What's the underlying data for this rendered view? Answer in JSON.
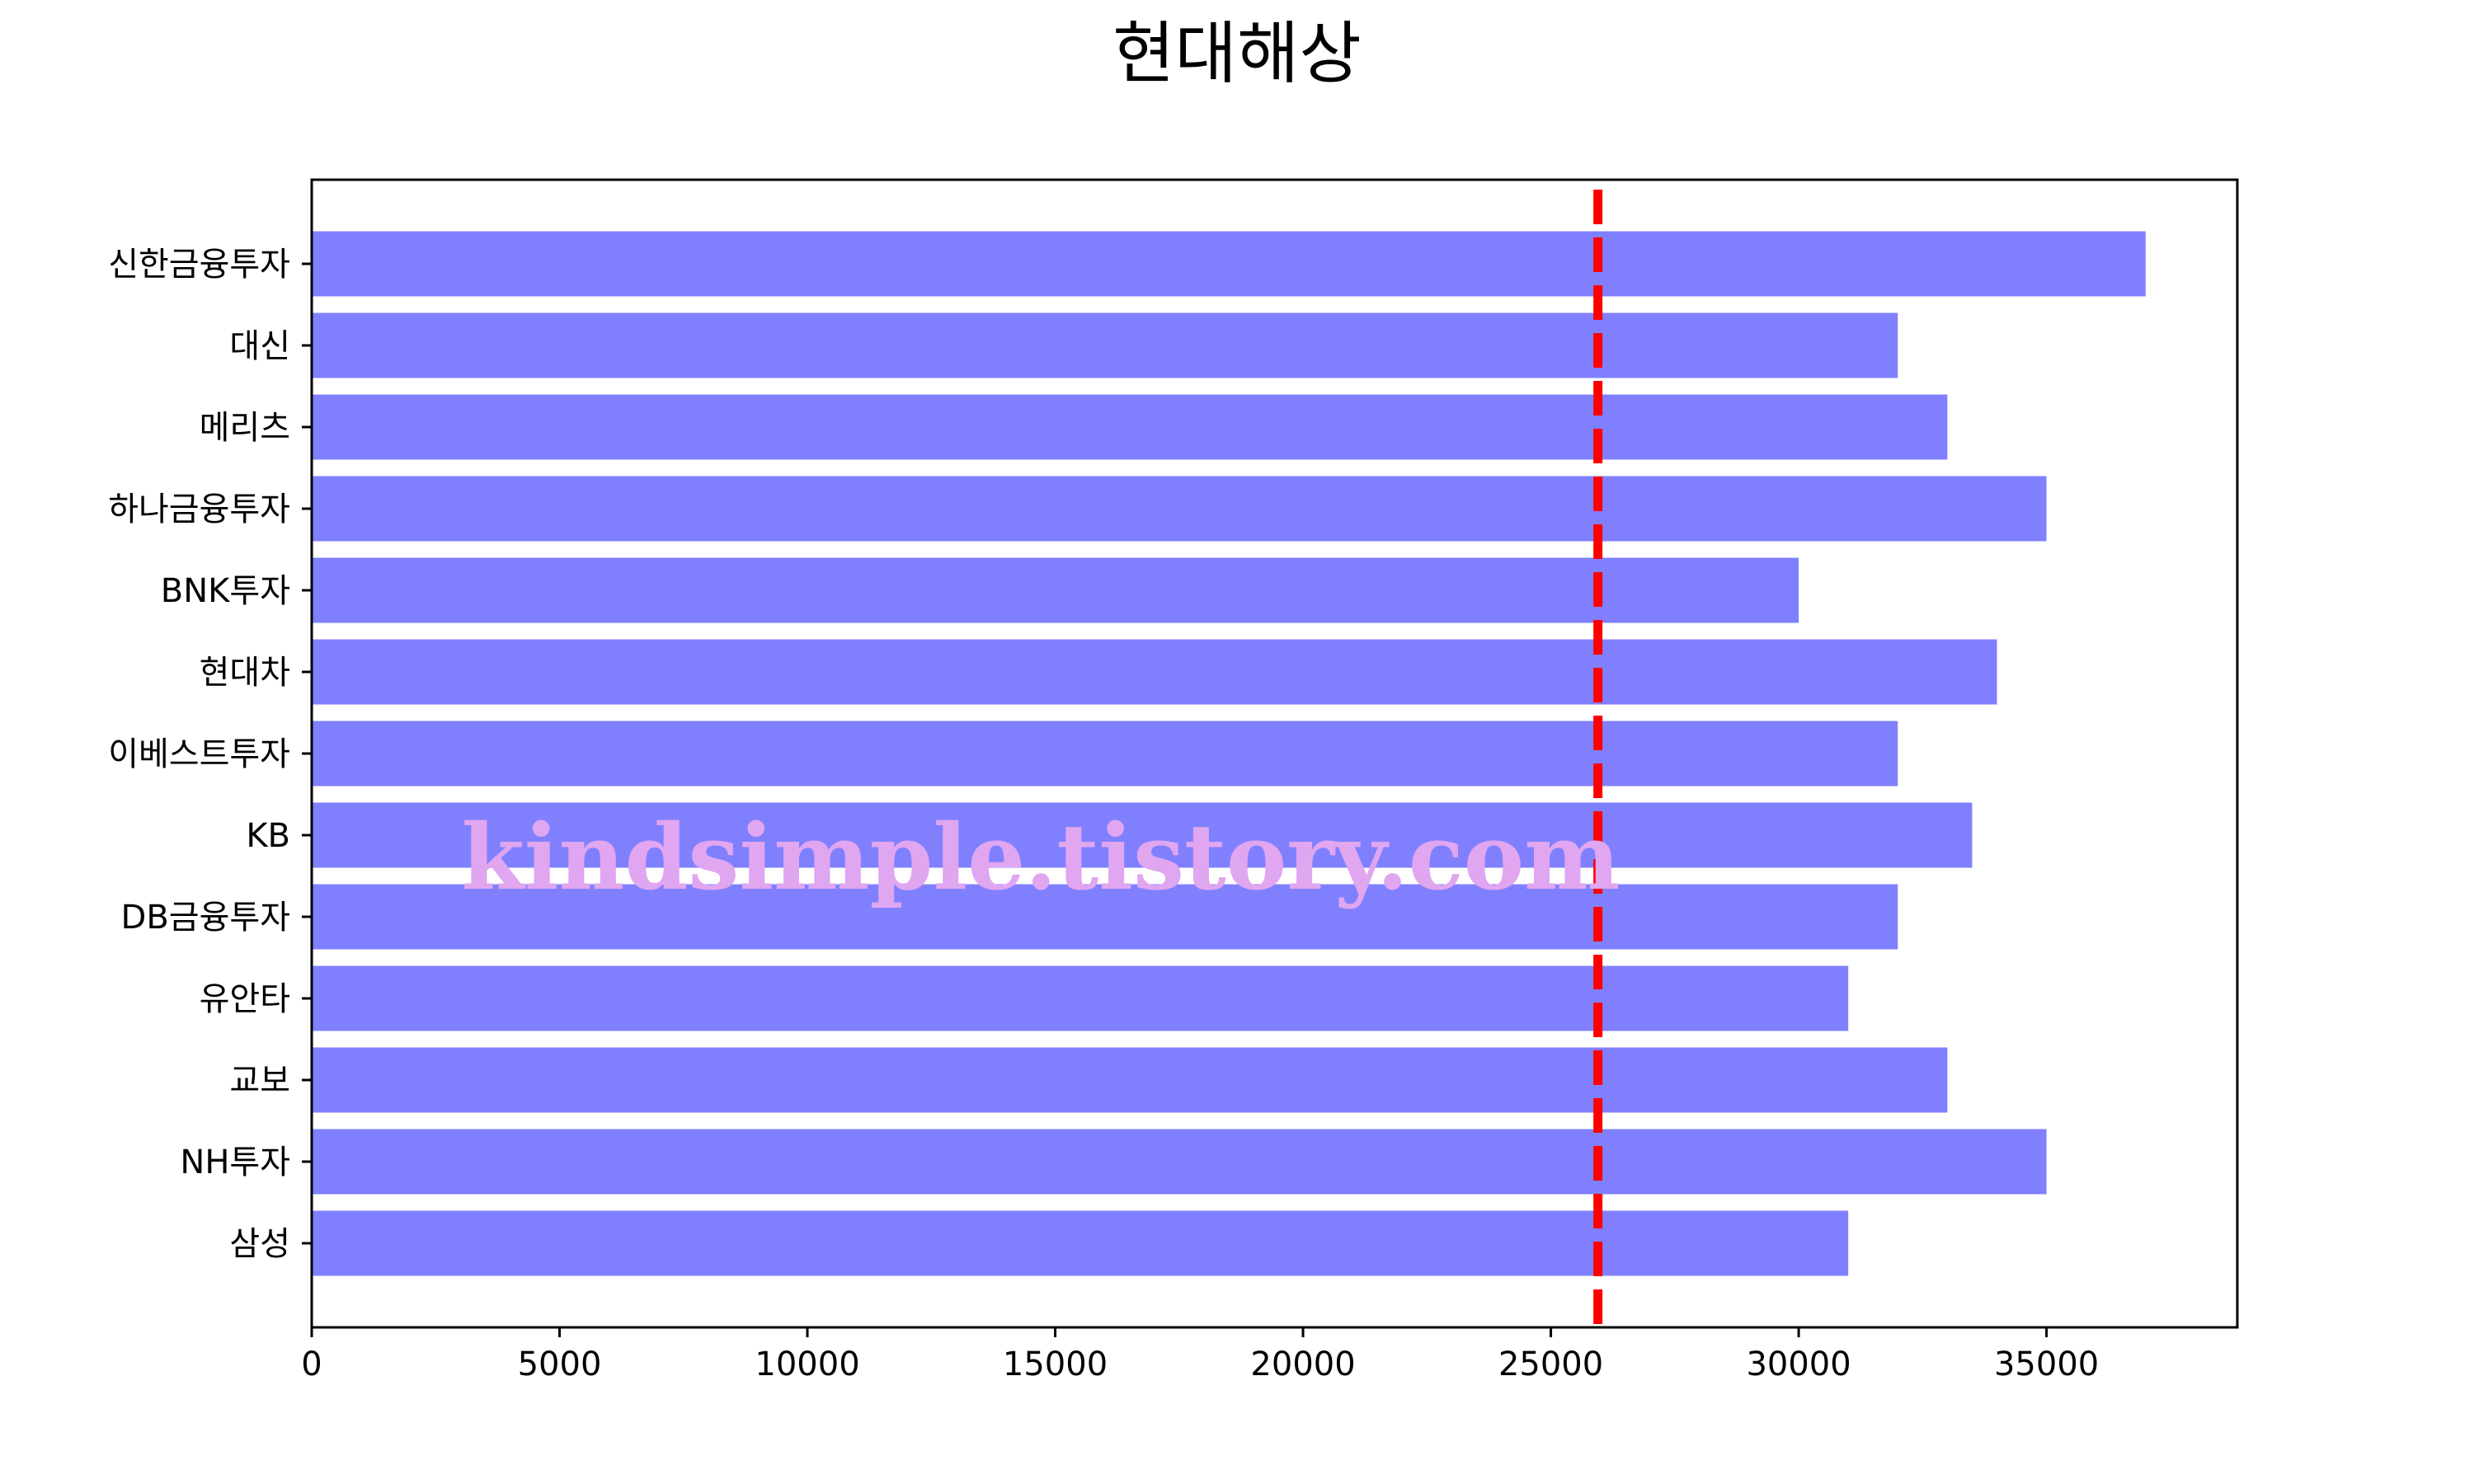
{
  "chart_data": {
    "type": "bar",
    "orientation": "horizontal",
    "title": "현대해상",
    "xlabel": "",
    "ylabel": "",
    "categories": [
      "신한금융투자",
      "대신",
      "메리츠",
      "하나금융투자",
      "BNK투자",
      "현대차",
      "이베스트투자",
      "KB",
      "DB금융투자",
      "유안타",
      "교보",
      "NH투자",
      "삼성"
    ],
    "values": [
      37000,
      32000,
      33000,
      35000,
      30000,
      34000,
      32000,
      33500,
      32000,
      31000,
      33000,
      35000,
      31000
    ],
    "xlim": [
      0,
      38850
    ],
    "xticks": [
      "0",
      "5000",
      "10000",
      "15000",
      "20000",
      "25000",
      "30000",
      "35000"
    ],
    "reference_line": {
      "value": 25950,
      "color": "#ff0000",
      "style": "dashed"
    },
    "bar_color": "#8080ff",
    "grid": false
  },
  "watermark": "kindsimple.tistory.com"
}
